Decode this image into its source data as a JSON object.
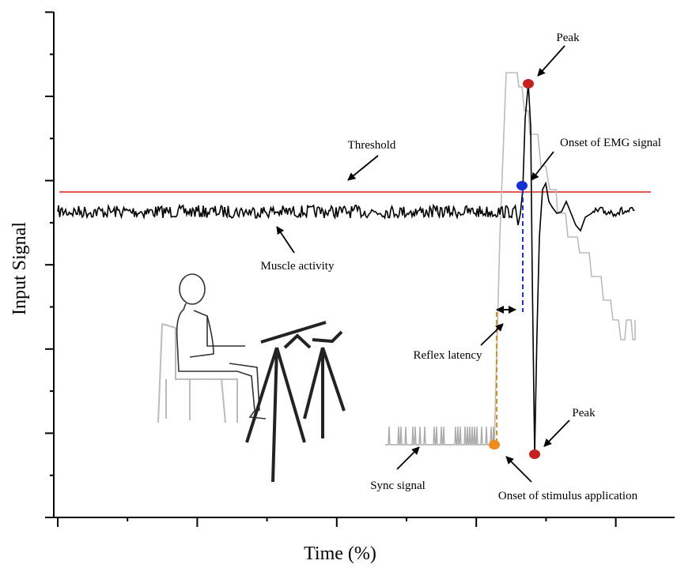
{
  "axes": {
    "x_label": "Time (%)",
    "y_label": "Input Signal"
  },
  "annotations": {
    "peak_top": "Peak",
    "onset_emg": "Onset of EMG signal",
    "threshold": "Threshold",
    "muscle_activity": "Muscle activity",
    "reflex_latency": "Reflex latency",
    "peak_bottom": "Peak",
    "sync_signal": "Sync signal",
    "onset_stimulus": "Onset of stimulus application"
  }
}
